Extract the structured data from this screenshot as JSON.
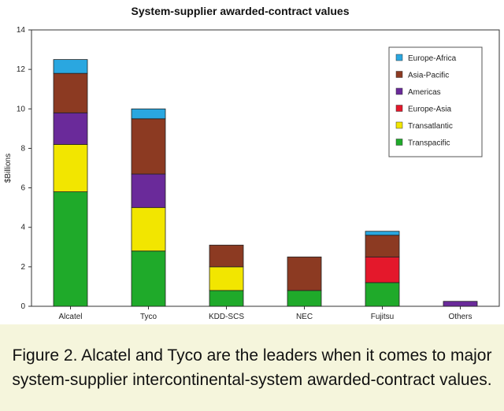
{
  "chart_data": {
    "type": "bar",
    "stacked": true,
    "title": "System-supplier awarded-contract values",
    "ylabel": "$Billions",
    "xlabel": "",
    "ylim": [
      0,
      14
    ],
    "yticks": [
      0,
      2,
      4,
      6,
      8,
      10,
      12,
      14
    ],
    "grid": false,
    "legend_position": "top-right",
    "categories": [
      "Alcatel",
      "Tyco",
      "KDD-SCS",
      "NEC",
      "Fujitsu",
      "Others"
    ],
    "series": [
      {
        "name": "Transpacific",
        "color": "#1faa2a",
        "values": [
          5.8,
          2.8,
          0.8,
          0.8,
          1.2,
          0.0
        ]
      },
      {
        "name": "Transatlantic",
        "color": "#f2e600",
        "values": [
          2.4,
          2.2,
          1.2,
          0.0,
          0.0,
          0.0
        ]
      },
      {
        "name": "Europe-Asia",
        "color": "#e4182b",
        "values": [
          0.0,
          0.0,
          0.0,
          0.0,
          1.3,
          0.0
        ]
      },
      {
        "name": "Americas",
        "color": "#6a2a9a",
        "values": [
          1.6,
          1.7,
          0.0,
          0.0,
          0.0,
          0.25
        ]
      },
      {
        "name": "Asia-Pacific",
        "color": "#8c3a22",
        "values": [
          2.0,
          2.8,
          1.1,
          1.7,
          1.1,
          0.0
        ]
      },
      {
        "name": "Europe-Africa",
        "color": "#2aa7e0",
        "values": [
          0.7,
          0.5,
          0.0,
          0.0,
          0.2,
          0.0
        ]
      }
    ]
  },
  "caption": "Figure 2. Alcatel and Tyco are the leaders when it comes to major system-supplier intercontinental-system awarded-contract values."
}
